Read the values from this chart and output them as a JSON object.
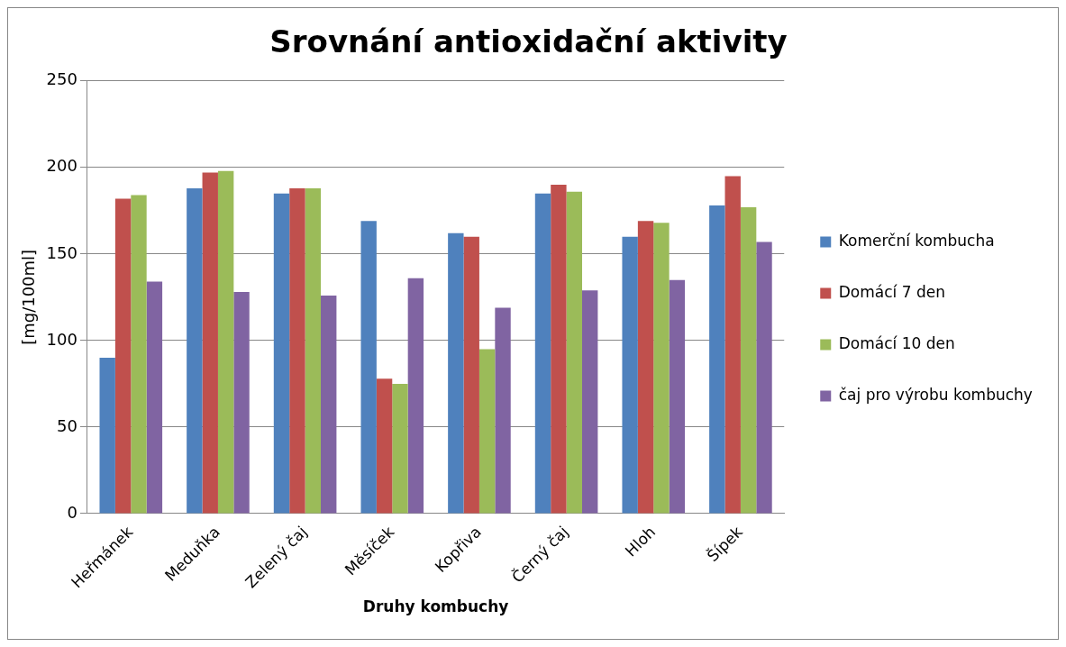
{
  "chart_data": {
    "type": "bar",
    "title": "Srovnání antioxidační aktivity",
    "xlabel": "Druhy kombuchy",
    "ylabel": "[mg/100ml]",
    "categories": [
      "Heřmánek",
      "Meduňka",
      "Zelený čaj",
      "Měsíček",
      "Kopřiva",
      "Černý čaj",
      "Hloh",
      "Šípek"
    ],
    "series": [
      {
        "name": "Komerční kombucha",
        "color": "#4f81bd",
        "values": [
          90,
          188,
          185,
          169,
          162,
          185,
          160,
          178
        ]
      },
      {
        "name": "Domácí 7 den",
        "color": "#c0504d",
        "values": [
          182,
          197,
          188,
          78,
          160,
          190,
          169,
          195
        ]
      },
      {
        "name": "Domácí 10 den",
        "color": "#9bbb59",
        "values": [
          184,
          198,
          188,
          75,
          95,
          186,
          168,
          177
        ]
      },
      {
        "name": "čaj pro výrobu kombuchy",
        "color": "#8064a2",
        "values": [
          134,
          128,
          126,
          136,
          119,
          129,
          135,
          157
        ]
      }
    ],
    "ylim": [
      0,
      250
    ],
    "yticks": [
      0,
      50,
      100,
      150,
      200,
      250
    ],
    "grid": "y",
    "legend": "right"
  }
}
